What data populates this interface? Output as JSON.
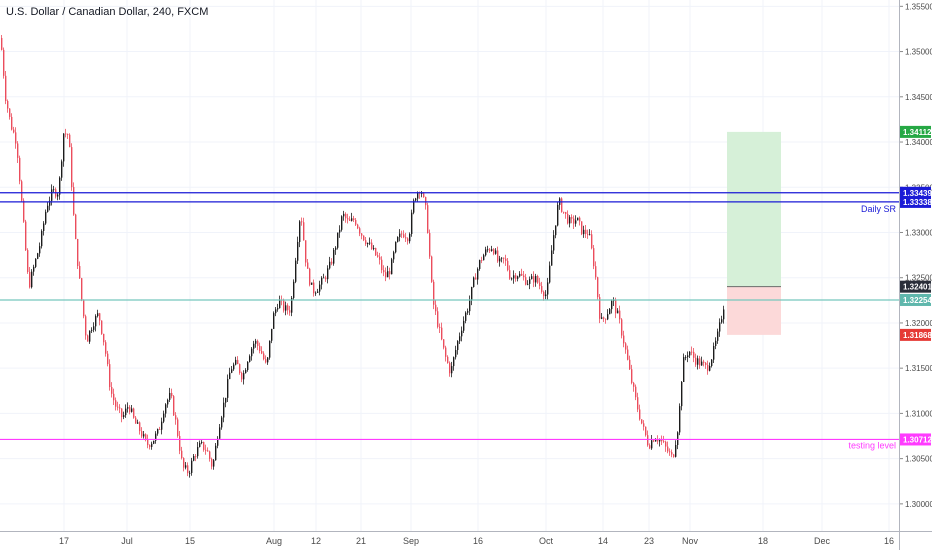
{
  "header": {
    "title": "U.S. Dollar / Canadian Dollar, 240, FXCM"
  },
  "colors": {
    "up": "#53b987",
    "down": "#eb4d5c",
    "up_wick": "#6a6a6a",
    "sr_line": "#1a1ad6",
    "current_line": "#76c7bd",
    "testing_line": "#ff3bff",
    "target": "#26a845",
    "stop": "#e53935",
    "entry": "#2a2e39",
    "target_zone": "#d6f0d8",
    "stop_zone": "#fcd9d9"
  },
  "chart_data": {
    "type": "candlestick",
    "instrument": "U.S. Dollar / Canadian Dollar",
    "timeframe": "240",
    "broker": "FXCM",
    "y_axis": {
      "range": [
        1.297,
        1.3557
      ],
      "ticks": [
        "1.35500",
        "1.35000",
        "1.34500",
        "1.34000",
        "1.33500",
        "1.33000",
        "1.32500",
        "1.32000",
        "1.31500",
        "1.31000",
        "1.30500",
        "1.30000"
      ]
    },
    "x_axis": {
      "ticks": [
        {
          "label": "17",
          "x": 64
        },
        {
          "label": "Jul",
          "x": 127
        },
        {
          "label": "15",
          "x": 190
        },
        {
          "label": "Aug",
          "x": 274
        },
        {
          "label": "12",
          "x": 316
        },
        {
          "label": "21",
          "x": 361
        },
        {
          "label": "Sep",
          "x": 411
        },
        {
          "label": "16",
          "x": 478
        },
        {
          "label": "Oct",
          "x": 546
        },
        {
          "label": "14",
          "x": 603
        },
        {
          "label": "23",
          "x": 649
        },
        {
          "label": "Nov",
          "x": 690
        },
        {
          "label": "18",
          "x": 763
        },
        {
          "label": "Dec",
          "x": 822
        },
        {
          "label": "16",
          "x": 889
        }
      ]
    },
    "price_path": [
      [
        0,
        1.3515
      ],
      [
        5,
        1.345
      ],
      [
        10,
        1.342
      ],
      [
        16,
        1.34
      ],
      [
        22,
        1.332
      ],
      [
        28,
        1.324
      ],
      [
        34,
        1.3265
      ],
      [
        40,
        1.329
      ],
      [
        46,
        1.333
      ],
      [
        52,
        1.3345
      ],
      [
        58,
        1.3345
      ],
      [
        63,
        1.341
      ],
      [
        68,
        1.3408
      ],
      [
        74,
        1.33
      ],
      [
        80,
        1.3235
      ],
      [
        86,
        1.318
      ],
      [
        92,
        1.32
      ],
      [
        98,
        1.321
      ],
      [
        104,
        1.3175
      ],
      [
        110,
        1.3125
      ],
      [
        116,
        1.3105
      ],
      [
        122,
        1.3095
      ],
      [
        128,
        1.311
      ],
      [
        134,
        1.309
      ],
      [
        140,
        1.308
      ],
      [
        146,
        1.3065
      ],
      [
        152,
        1.307
      ],
      [
        158,
        1.308
      ],
      [
        164,
        1.311
      ],
      [
        170,
        1.312
      ],
      [
        176,
        1.3085
      ],
      [
        182,
        1.304
      ],
      [
        188,
        1.3035
      ],
      [
        194,
        1.3055
      ],
      [
        200,
        1.3065
      ],
      [
        206,
        1.306
      ],
      [
        212,
        1.304
      ],
      [
        218,
        1.3085
      ],
      [
        224,
        1.3115
      ],
      [
        230,
        1.315
      ],
      [
        236,
        1.3155
      ],
      [
        242,
        1.314
      ],
      [
        248,
        1.3165
      ],
      [
        254,
        1.318
      ],
      [
        260,
        1.317
      ],
      [
        266,
        1.315
      ],
      [
        272,
        1.3205
      ],
      [
        278,
        1.3225
      ],
      [
        284,
        1.3215
      ],
      [
        290,
        1.3215
      ],
      [
        296,
        1.3285
      ],
      [
        300,
        1.3325
      ],
      [
        306,
        1.326
      ],
      [
        312,
        1.3235
      ],
      [
        318,
        1.324
      ],
      [
        324,
        1.325
      ],
      [
        330,
        1.3265
      ],
      [
        336,
        1.329
      ],
      [
        342,
        1.332
      ],
      [
        348,
        1.331
      ],
      [
        354,
        1.3315
      ],
      [
        360,
        1.33
      ],
      [
        366,
        1.329
      ],
      [
        372,
        1.328
      ],
      [
        378,
        1.327
      ],
      [
        384,
        1.325
      ],
      [
        390,
        1.326
      ],
      [
        396,
        1.329
      ],
      [
        402,
        1.33
      ],
      [
        408,
        1.3295
      ],
      [
        414,
        1.334
      ],
      [
        420,
        1.335
      ],
      [
        426,
        1.332
      ],
      [
        432,
        1.3225
      ],
      [
        438,
        1.3195
      ],
      [
        444,
        1.3165
      ],
      [
        450,
        1.3145
      ],
      [
        456,
        1.3175
      ],
      [
        462,
        1.32
      ],
      [
        468,
        1.322
      ],
      [
        474,
        1.325
      ],
      [
        480,
        1.327
      ],
      [
        486,
        1.328
      ],
      [
        492,
        1.3285
      ],
      [
        498,
        1.3265
      ],
      [
        504,
        1.327
      ],
      [
        510,
        1.325
      ],
      [
        516,
        1.3255
      ],
      [
        522,
        1.325
      ],
      [
        528,
        1.3245
      ],
      [
        534,
        1.325
      ],
      [
        540,
        1.324
      ],
      [
        546,
        1.323
      ],
      [
        552,
        1.329
      ],
      [
        558,
        1.3335
      ],
      [
        564,
        1.332
      ],
      [
        570,
        1.331
      ],
      [
        576,
        1.3315
      ],
      [
        582,
        1.33
      ],
      [
        588,
        1.33
      ],
      [
        594,
        1.326
      ],
      [
        600,
        1.32
      ],
      [
        606,
        1.321
      ],
      [
        612,
        1.3225
      ],
      [
        618,
        1.3205
      ],
      [
        624,
        1.3175
      ],
      [
        630,
        1.314
      ],
      [
        636,
        1.311
      ],
      [
        642,
        1.3085
      ],
      [
        648,
        1.3065
      ],
      [
        654,
        1.3075
      ],
      [
        660,
        1.307
      ],
      [
        666,
        1.306
      ],
      [
        672,
        1.305
      ],
      [
        678,
        1.309
      ],
      [
        682,
        1.3155
      ],
      [
        688,
        1.317
      ],
      [
        694,
        1.316
      ],
      [
        700,
        1.3155
      ],
      [
        706,
        1.315
      ],
      [
        712,
        1.3165
      ],
      [
        718,
        1.319
      ],
      [
        724,
        1.3225
      ]
    ],
    "levels": [
      {
        "name": "resistance-top",
        "value": 1.33439,
        "label": "1.33439",
        "color": "#1a1ad6"
      },
      {
        "name": "resistance-bottom",
        "value": 1.33338,
        "label": "1.33338",
        "color": "#1a1ad6"
      },
      {
        "name": "current",
        "value": 1.32254,
        "label": "1.32254",
        "color": "#76c7bd"
      },
      {
        "name": "testing",
        "value": 1.30712,
        "label": "1.30712",
        "color": "#ff3bff"
      }
    ],
    "position": {
      "entry": 1.32401,
      "entry_label": "1.32401",
      "target": 1.34112,
      "target_label": "1.34112",
      "stop": 1.31868,
      "stop_label": "1.31868"
    },
    "annotations": {
      "daily_sr": "Daily SR",
      "testing_level": "testing level"
    }
  }
}
